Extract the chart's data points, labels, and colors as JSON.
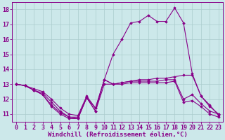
{
  "background_color": "#cce8ea",
  "line_color": "#880088",
  "grid_color": "#aacccc",
  "xlabel": "Windchill (Refroidissement éolien,°C)",
  "xlabel_fontsize": 6.5,
  "tick_fontsize": 6.0,
  "xlim": [
    -0.5,
    23.5
  ],
  "ylim": [
    10.5,
    18.5
  ],
  "yticks": [
    11,
    12,
    13,
    14,
    15,
    16,
    17,
    18
  ],
  "xticks": [
    0,
    1,
    2,
    3,
    4,
    5,
    6,
    7,
    8,
    9,
    10,
    11,
    12,
    13,
    14,
    15,
    16,
    17,
    18,
    19,
    20,
    21,
    22,
    23
  ],
  "series": [
    {
      "x": [
        0,
        1,
        2,
        3,
        4,
        5,
        6,
        7,
        8,
        9,
        10,
        11,
        12,
        13,
        14,
        15,
        16,
        17,
        18,
        19,
        20,
        21,
        22,
        23
      ],
      "y": [
        13.0,
        12.9,
        12.6,
        12.3,
        11.5,
        11.0,
        10.7,
        10.7,
        12.1,
        11.2,
        13.3,
        15.0,
        16.0,
        17.1,
        17.2,
        17.6,
        17.2,
        17.2,
        18.1,
        17.1,
        13.7,
        12.2,
        11.6,
        10.9
      ]
    },
    {
      "x": [
        0,
        1,
        2,
        3,
        4,
        5,
        6,
        7,
        8,
        9,
        10,
        11,
        12,
        13,
        14,
        15,
        16,
        17,
        18,
        19,
        20,
        21,
        22,
        23
      ],
      "y": [
        13.0,
        12.9,
        12.6,
        12.4,
        11.8,
        11.2,
        10.8,
        10.8,
        12.1,
        11.4,
        13.3,
        13.0,
        13.1,
        13.2,
        13.3,
        13.3,
        13.4,
        13.4,
        13.5,
        13.6,
        13.6,
        12.2,
        11.5,
        11.0
      ]
    },
    {
      "x": [
        0,
        1,
        2,
        3,
        4,
        5,
        6,
        7,
        8,
        9,
        10,
        11,
        12,
        13,
        14,
        15,
        16,
        17,
        18,
        19,
        20,
        21,
        22,
        23
      ],
      "y": [
        13.0,
        12.9,
        12.7,
        12.5,
        12.0,
        11.4,
        11.0,
        10.9,
        12.2,
        11.4,
        13.3,
        13.0,
        13.1,
        13.2,
        13.2,
        13.2,
        13.2,
        13.3,
        13.3,
        12.0,
        12.3,
        11.7,
        11.2,
        11.0
      ]
    },
    {
      "x": [
        0,
        1,
        2,
        3,
        4,
        5,
        6,
        7,
        8,
        9,
        10,
        11,
        12,
        13,
        14,
        15,
        16,
        17,
        18,
        19,
        20,
        21,
        22,
        23
      ],
      "y": [
        13.0,
        12.9,
        12.6,
        12.3,
        11.6,
        11.1,
        10.8,
        10.7,
        12.1,
        11.2,
        13.0,
        13.0,
        13.0,
        13.1,
        13.1,
        13.1,
        13.1,
        13.1,
        13.2,
        11.8,
        11.9,
        11.5,
        11.0,
        10.8
      ]
    }
  ]
}
